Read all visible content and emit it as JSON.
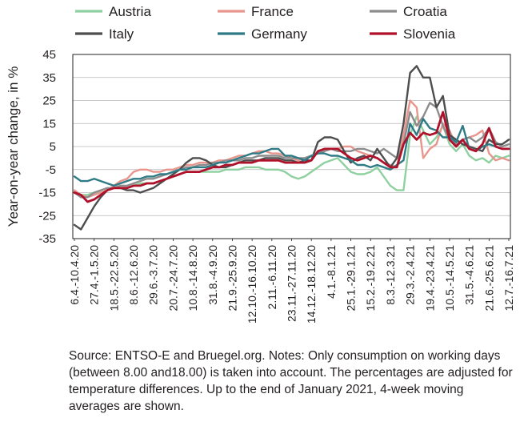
{
  "chart_data": {
    "type": "line",
    "ylabel": "Year-on-year change, in %",
    "xlabel": "",
    "ylim": [
      -35,
      45
    ],
    "yticks": [
      45,
      35,
      25,
      15,
      5,
      -5,
      -15,
      -25,
      -35
    ],
    "grid": true,
    "legend_position": "top",
    "x_tick_labels": [
      "6.4.-10.4.20",
      "27.4.-1.5.20",
      "18.5.-22.5.20",
      "8.6.-12.6.20",
      "29.6.-3.7.20",
      "20.7.-24.7.20",
      "10.8.-14.8.20",
      "31.8.-4.9.20",
      "21.9.-25.9.20",
      "12.10.-16.10.20",
      "2.11.-6.11.20",
      "23.11.-27.11.20",
      "14.12.-18.12.20",
      "4.1.-8.1.21",
      "25.1.-29.1.21",
      "15.2.-19.2.21",
      "8.3.-12.3.21",
      "29.3.-2.4.21",
      "19.4.-23.4.21",
      "10.5.-14.5.21",
      "31.5.-4.6.21",
      "21.6.-25.6.21",
      "12.7.-16.7.21"
    ],
    "x": [
      "6.4.-10.4.20",
      "13.4.-17.4.20",
      "20.4.-24.4.20",
      "27.4.-1.5.20",
      "4.5.-8.5.20",
      "11.5.-15.5.20",
      "18.5.-22.5.20",
      "25.5.-29.5.20",
      "1.6.-5.6.20",
      "8.6.-12.6.20",
      "15.6.-19.6.20",
      "22.6.-26.6.20",
      "29.6.-3.7.20",
      "6.7.-10.7.20",
      "13.7.-17.7.20",
      "20.7.-24.7.20",
      "27.7.-31.7.20",
      "3.8.-7.8.20",
      "10.8.-14.8.20",
      "17.8.-21.8.20",
      "24.8.-28.8.20",
      "31.8.-4.9.20",
      "7.9.-11.9.20",
      "14.9.-18.9.20",
      "21.9.-25.9.20",
      "28.9.-2.10.20",
      "5.10.-9.10.20",
      "12.10.-16.10.20",
      "19.10.-23.10.20",
      "26.10.-30.10.20",
      "2.11.-6.11.20",
      "9.11.-13.11.20",
      "16.11.-20.11.20",
      "23.11.-27.11.20",
      "30.11.-4.12.20",
      "7.12.-11.12.20",
      "14.12.-18.12.20",
      "21.12.-25.12.20",
      "28.12.-1.1.21",
      "4.1.-8.1.21",
      "11.1.-15.1.21",
      "18.1.-22.1.21",
      "25.1.-29.1.21",
      "1.2.-5.2.21",
      "8.2.-12.2.21",
      "15.2.-19.2.21",
      "22.2.-26.2.21",
      "1.3.-5.3.21",
      "8.3.-12.3.21",
      "15.3.-19.3.21",
      "22.3.-26.3.21",
      "29.3.-2.4.21",
      "5.4.-9.4.21",
      "12.4.-16.4.21",
      "19.4.-23.4.21",
      "26.4.-30.4.21",
      "3.5.-7.5.21",
      "10.5.-14.5.21",
      "17.5.-21.5.21",
      "24.5.-28.5.21",
      "31.5.-4.6.21",
      "7.6.-11.6.21",
      "14.6.-18.6.21",
      "21.6.-25.6.21",
      "28.6.-2.7.21",
      "5.7.-9.7.21",
      "12.7.-16.7.21"
    ],
    "series": [
      {
        "name": "Austria",
        "color": "#8fd0a0",
        "values": [
          -15,
          -16,
          -16,
          -15,
          -15,
          -14,
          -13,
          -13,
          -13,
          -12,
          -11,
          -11,
          -11,
          -10,
          -9,
          -8,
          -7,
          -6,
          -6,
          -6,
          -6,
          -6,
          -6,
          -5,
          -5,
          -5,
          -4,
          -4,
          -4,
          -5,
          -5,
          -5,
          -6,
          -8,
          -9,
          -8,
          -6,
          -4,
          -2,
          -1,
          0,
          -3,
          -6,
          -7,
          -7,
          -6,
          -4,
          -8,
          -12,
          -14,
          -14,
          10,
          18,
          12,
          6,
          9,
          14,
          6,
          3,
          6,
          1,
          -1,
          0,
          -2,
          1,
          0,
          1
        ]
      },
      {
        "name": "France",
        "color": "#e8958d",
        "values": [
          -14,
          -16,
          -17,
          -16,
          -15,
          -14,
          -12,
          -10,
          -9,
          -6,
          -5,
          -5,
          -6,
          -6,
          -5,
          -5,
          -4,
          -3,
          -3,
          -2,
          -2,
          -2,
          -1,
          -1,
          0,
          1,
          1,
          2,
          3,
          3,
          2,
          2,
          1,
          0,
          -1,
          0,
          1,
          2,
          3,
          4,
          4,
          5,
          5,
          3,
          2,
          1,
          0,
          -2,
          -3,
          -4,
          10,
          25,
          22,
          0,
          4,
          6,
          15,
          12,
          5,
          8,
          9,
          10,
          12,
          2,
          -1,
          0,
          -1
        ]
      },
      {
        "name": "Croatia",
        "color": "#8c8c8c",
        "values": [
          -15,
          -17,
          -17,
          -15,
          -14,
          -13,
          -13,
          -12,
          -12,
          -11,
          -10,
          -9,
          -9,
          -8,
          -7,
          -6,
          -5,
          -4,
          -4,
          -3,
          -3,
          -2,
          -2,
          -1,
          -1,
          -1,
          0,
          0,
          1,
          1,
          1,
          1,
          0,
          0,
          0,
          0,
          1,
          2,
          3,
          4,
          3,
          3,
          3,
          4,
          4,
          3,
          2,
          4,
          2,
          0,
          6,
          20,
          14,
          18,
          24,
          22,
          14,
          8,
          6,
          8,
          9,
          7,
          9,
          13,
          7,
          5,
          6
        ]
      },
      {
        "name": "Italy",
        "color": "#4d4d4d",
        "values": [
          -29,
          -31,
          -26,
          -21,
          -17,
          -14,
          -13,
          -13,
          -14,
          -14,
          -15,
          -14,
          -13,
          -11,
          -9,
          -7,
          -5,
          -2,
          0,
          0,
          -1,
          -3,
          -4,
          -4,
          -3,
          -2,
          -1,
          -1,
          -1,
          0,
          0,
          0,
          -1,
          -1,
          -2,
          -1,
          -1,
          7,
          9,
          9,
          8,
          3,
          -2,
          0,
          1,
          -1,
          4,
          0,
          -4,
          0,
          15,
          37,
          40,
          35,
          35,
          22,
          27,
          10,
          8,
          6,
          5,
          4,
          3,
          8,
          6,
          6,
          8
        ]
      },
      {
        "name": "Germany",
        "color": "#2e7b85",
        "values": [
          -8,
          -10,
          -10,
          -9,
          -10,
          -11,
          -12,
          -11,
          -10,
          -9,
          -9,
          -8,
          -8,
          -7,
          -7,
          -6,
          -5,
          -5,
          -4,
          -4,
          -4,
          -3,
          -2,
          -2,
          -1,
          0,
          1,
          2,
          2,
          3,
          4,
          4,
          1,
          1,
          0,
          -1,
          1,
          2,
          2,
          1,
          1,
          0,
          -1,
          -3,
          -3,
          -4,
          -3,
          -4,
          -5,
          -3,
          -1,
          15,
          10,
          17,
          13,
          12,
          9,
          9,
          7,
          14,
          4,
          3,
          5,
          6,
          5,
          4,
          4
        ]
      },
      {
        "name": "Slovenia",
        "color": "#b0112a",
        "values": [
          -15,
          -16,
          -19,
          -18,
          -16,
          -14,
          -13,
          -13,
          -13,
          -12,
          -12,
          -11,
          -11,
          -10,
          -9,
          -8,
          -7,
          -6,
          -6,
          -6,
          -5,
          -4,
          -4,
          -3,
          -3,
          -2,
          -2,
          -2,
          -1,
          -1,
          -1,
          -1,
          -2,
          -2,
          -2,
          -2,
          -1,
          3,
          4,
          4,
          4,
          2,
          0,
          -1,
          0,
          1,
          0,
          -2,
          -4,
          -4,
          6,
          11,
          8,
          11,
          10,
          11,
          20,
          8,
          5,
          8,
          4,
          3,
          6,
          13,
          5,
          4,
          4
        ]
      }
    ]
  },
  "source_note": "Source: ENTSO-E and Bruegel.org. Notes: Only consumption on working days (between 8.00 and18.00) is taken into account. The percentages are adjusted for temperature differences. Up to the end of January 2021, 4-week moving averages are shown."
}
